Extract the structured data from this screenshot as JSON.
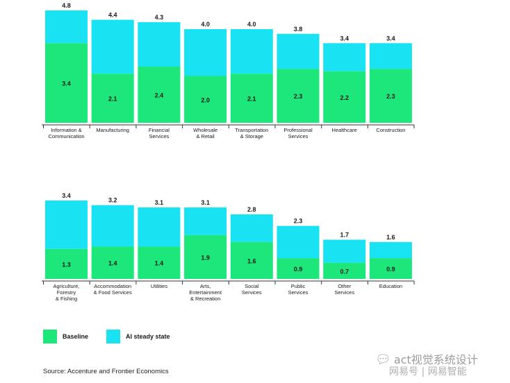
{
  "chart_data": [
    {
      "type": "bar",
      "stacked": true,
      "categories": [
        [
          "Information &",
          "Communication"
        ],
        [
          "Manufacturing"
        ],
        [
          "Financial",
          "Services"
        ],
        [
          "Wholesale",
          "& Retail"
        ],
        [
          "Transportation",
          "& Storage"
        ],
        [
          "Professional",
          "Services"
        ],
        [
          "Healthcare"
        ],
        [
          "Construction"
        ]
      ],
      "series": [
        {
          "name": "Baseline",
          "values": [
            3.4,
            2.1,
            2.4,
            2.0,
            2.1,
            2.3,
            2.2,
            2.3
          ]
        }
      ],
      "totals": [
        4.8,
        4.4,
        4.3,
        4.0,
        4.0,
        3.8,
        3.4,
        3.4
      ],
      "baseline_labels": [
        "3.4",
        "2.1",
        "2.4",
        "2.0",
        "2.1",
        "2.3",
        "2.2",
        "2.3"
      ],
      "total_labels": [
        "4.8",
        "4.4",
        "4.3",
        "4.0",
        "4.0",
        "3.8",
        "3.4",
        "3.4"
      ],
      "ylim": [
        0,
        4.8
      ]
    },
    {
      "type": "bar",
      "stacked": true,
      "categories": [
        [
          "Agriculture,",
          "Forestry",
          "& Fishing"
        ],
        [
          "Accommodation",
          "& Food Services"
        ],
        [
          "Utilities"
        ],
        [
          "Arts,",
          "Entertainment",
          "& Recreation"
        ],
        [
          "Social",
          "Services"
        ],
        [
          "Public",
          "Services"
        ],
        [
          "Other",
          "Services"
        ],
        [
          "Education"
        ]
      ],
      "series": [
        {
          "name": "Baseline",
          "values": [
            1.3,
            1.4,
            1.4,
            1.9,
            1.6,
            0.9,
            0.7,
            0.9
          ]
        }
      ],
      "totals": [
        3.4,
        3.2,
        3.1,
        3.1,
        2.8,
        2.3,
        1.7,
        1.6
      ],
      "baseline_labels": [
        "1.3",
        "1.4",
        "1.4",
        "1.9",
        "1.6",
        "0.9",
        "0.7",
        "0.9"
      ],
      "total_labels": [
        "3.4",
        "3.2",
        "3.1",
        "3.1",
        "2.8",
        "2.3",
        "1.7",
        "1.6"
      ],
      "ylim": [
        0,
        3.4
      ]
    }
  ],
  "legend": {
    "baseline_label": "Baseline",
    "ai_label": "AI steady state",
    "baseline_color": "#1de77a",
    "ai_color": "#19e2f2"
  },
  "source": "Source: Accenture and Frontier Economics",
  "watermark": {
    "line1": "act视觉系统设计",
    "line2": "网易号 | 网易智能"
  }
}
